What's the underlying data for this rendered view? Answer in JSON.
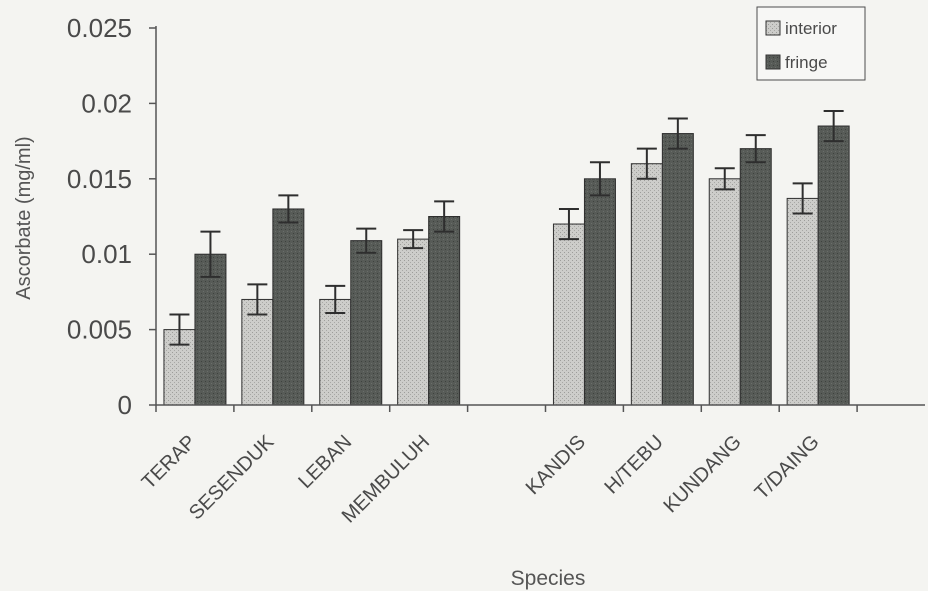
{
  "chart_data": {
    "type": "bar",
    "xlabel": "Species",
    "ylabel": "Ascorbate (mg/ml)",
    "ylim": [
      0,
      0.025
    ],
    "y_ticks": [
      "0",
      "0.005",
      "0.01",
      "0.015",
      "0.02",
      "0.025"
    ],
    "grid": false,
    "legend_position": "top-right",
    "categories": [
      "TERAP",
      "SESENDUK",
      "LEBAN",
      "MEMBULUH",
      "",
      "KANDIS",
      "H/TEBU",
      "KUNDANG",
      "T/DAING"
    ],
    "series": [
      {
        "name": "interior",
        "color": "#c9c9c6",
        "values": [
          0.005,
          0.007,
          0.007,
          0.011,
          null,
          0.012,
          0.016,
          0.015,
          0.0137
        ],
        "errors": [
          0.001,
          0.001,
          0.0009,
          0.0006,
          null,
          0.001,
          0.001,
          0.0007,
          0.001
        ]
      },
      {
        "name": "fringe",
        "color": "#555955",
        "values": [
          0.01,
          0.013,
          0.0109,
          0.0125,
          null,
          0.015,
          0.018,
          0.017,
          0.0185
        ],
        "errors": [
          0.0015,
          0.0009,
          0.0008,
          0.001,
          null,
          0.0011,
          0.001,
          0.0009,
          0.001
        ]
      }
    ]
  }
}
